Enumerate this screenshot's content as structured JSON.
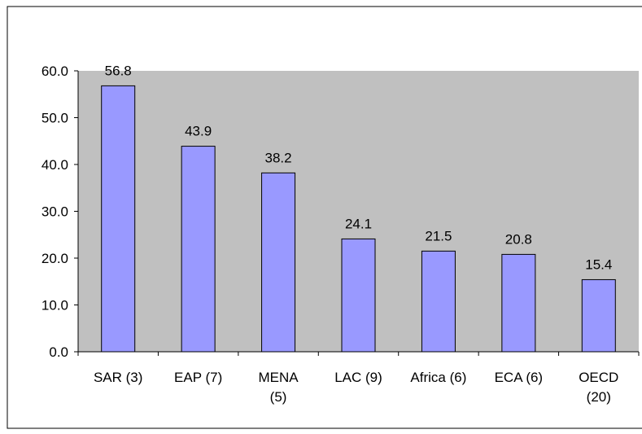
{
  "chart_data": {
    "type": "bar",
    "categories": [
      "SAR (3)",
      "EAP (7)",
      "MENA\n(5)",
      "LAC (9)",
      "Africa (6)",
      "ECA (6)",
      "OECD\n(20)"
    ],
    "values": [
      56.8,
      43.9,
      38.2,
      24.1,
      21.5,
      20.8,
      15.4
    ],
    "color": "#9999ff",
    "ylim": [
      0,
      60
    ],
    "yticks": [
      {
        "value": 0,
        "label": "0.0"
      },
      {
        "value": 10,
        "label": "10.0"
      },
      {
        "value": 20,
        "label": "20.0"
      },
      {
        "value": 30,
        "label": "30.0"
      },
      {
        "value": 40,
        "label": "40.0"
      },
      {
        "value": 50,
        "label": "50.0"
      },
      {
        "value": 60,
        "label": "60.0"
      }
    ],
    "plot_background": "#c0c0c0"
  }
}
